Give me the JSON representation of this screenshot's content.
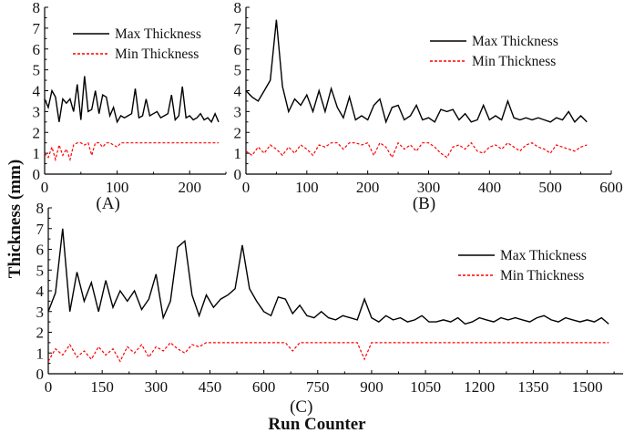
{
  "chart_data": {
    "type": "line",
    "ylabel": "Thickness (mm)",
    "xlabel": "Run Counter",
    "colors": {
      "max": "#000000",
      "min": "#ff0000"
    },
    "panels": [
      {
        "id": "A",
        "label": "(A)",
        "xlim": [
          0,
          250
        ],
        "ylim": [
          0,
          8
        ],
        "xticks": [
          "0",
          "100",
          "200"
        ],
        "xtick_values": [
          0,
          100,
          200
        ],
        "yticks": [
          "0",
          "1",
          "2",
          "3",
          "4",
          "5",
          "6",
          "7",
          "8"
        ],
        "legend_position": "top-right",
        "step": 5,
        "series": [
          {
            "name": "Max Thickness",
            "style": "solid",
            "values": [
              3.6,
              3.2,
              4.0,
              3.7,
              2.5,
              3.6,
              3.4,
              3.6,
              3.0,
              4.3,
              2.6,
              4.7,
              3.0,
              3.1,
              4.0,
              2.9,
              3.8,
              3.7,
              2.8,
              3.2,
              2.5,
              2.8,
              2.7,
              2.8,
              2.9,
              4.1,
              2.7,
              2.8,
              3.6,
              2.8,
              2.9,
              3.0,
              2.7,
              2.8,
              2.9,
              3.8,
              2.6,
              2.8,
              4.2,
              2.7,
              2.8,
              2.6,
              2.7,
              2.9,
              2.6,
              2.7,
              2.5,
              2.9,
              2.5
            ]
          },
          {
            "name": "Min Thickness",
            "style": "dashed",
            "values": [
              1.0,
              0.8,
              1.3,
              0.7,
              1.4,
              0.9,
              1.2,
              0.7,
              1.4,
              1.5,
              1.5,
              1.4,
              1.5,
              0.9,
              1.5,
              1.5,
              1.3,
              1.5,
              1.5,
              1.4,
              1.3,
              1.5,
              1.5,
              1.5,
              1.5,
              1.5,
              1.5,
              1.5,
              1.5,
              1.5,
              1.5,
              1.5,
              1.5,
              1.5,
              1.5,
              1.5,
              1.5,
              1.5,
              1.5,
              1.5,
              1.5,
              1.5,
              1.5,
              1.5,
              1.5,
              1.5,
              1.5,
              1.5,
              1.5
            ]
          }
        ]
      },
      {
        "id": "B",
        "label": "(B)",
        "xlim": [
          0,
          600
        ],
        "ylim": [
          0,
          8
        ],
        "xticks": [
          "0",
          "100",
          "200",
          "300",
          "400",
          "500",
          "600"
        ],
        "xtick_values": [
          0,
          100,
          200,
          300,
          400,
          500,
          600
        ],
        "yticks": [
          "0",
          "1",
          "2",
          "3",
          "4",
          "5",
          "6",
          "7",
          "8"
        ],
        "legend_position": "top-right",
        "step": 10,
        "series": [
          {
            "name": "Max Thickness",
            "style": "solid",
            "values": [
              4.0,
              3.7,
              3.5,
              4.0,
              4.5,
              7.4,
              4.2,
              3.0,
              3.6,
              3.3,
              3.8,
              3.0,
              4.0,
              3.0,
              4.1,
              3.2,
              2.7,
              3.7,
              2.6,
              2.8,
              2.6,
              3.3,
              3.6,
              2.5,
              3.2,
              3.3,
              2.6,
              2.8,
              3.3,
              2.6,
              2.7,
              2.5,
              3.1,
              3.0,
              3.1,
              2.6,
              2.9,
              2.5,
              2.6,
              3.3,
              2.6,
              2.8,
              2.6,
              3.5,
              2.7,
              2.6,
              2.7,
              2.6,
              2.7,
              2.6,
              2.5,
              2.7,
              2.6,
              3.0,
              2.5,
              2.8,
              2.5
            ]
          },
          {
            "name": "Min Thickness",
            "style": "dashed",
            "values": [
              1.1,
              0.9,
              1.3,
              1.0,
              1.4,
              1.2,
              0.9,
              1.3,
              1.0,
              1.4,
              1.2,
              0.9,
              1.4,
              1.3,
              1.5,
              1.5,
              1.2,
              1.5,
              1.5,
              1.4,
              1.5,
              0.9,
              1.5,
              1.3,
              0.8,
              1.5,
              1.2,
              1.4,
              1.1,
              1.5,
              1.5,
              1.3,
              1.0,
              0.8,
              1.3,
              1.4,
              1.2,
              1.5,
              1.1,
              1.0,
              1.3,
              1.4,
              1.2,
              1.5,
              1.3,
              1.1,
              1.4,
              1.5,
              1.3,
              1.2,
              1.0,
              1.4,
              1.3,
              1.2,
              1.1,
              1.3,
              1.4
            ]
          }
        ]
      },
      {
        "id": "C",
        "label": "(C)",
        "xlim": [
          0,
          1600
        ],
        "ylim": [
          0,
          8
        ],
        "xticks": [
          "0",
          "150",
          "300",
          "450",
          "600",
          "750",
          "900",
          "1050",
          "1200",
          "1350",
          "1500"
        ],
        "xtick_values": [
          0,
          150,
          300,
          450,
          600,
          750,
          900,
          1050,
          1200,
          1350,
          1500
        ],
        "yticks": [
          "0",
          "1",
          "2",
          "3",
          "4",
          "5",
          "6",
          "7",
          "8"
        ],
        "legend_position": "top-right",
        "step": 20,
        "series": [
          {
            "name": "Max Thickness",
            "style": "solid",
            "values": [
              3.0,
              3.9,
              7.0,
              3.0,
              4.9,
              3.5,
              4.4,
              3.0,
              4.5,
              3.2,
              4.0,
              3.5,
              4.0,
              3.1,
              3.6,
              4.8,
              2.7,
              3.5,
              6.1,
              6.4,
              3.8,
              2.8,
              3.8,
              3.2,
              3.6,
              3.8,
              4.1,
              6.2,
              4.1,
              3.5,
              3.0,
              2.8,
              3.7,
              3.6,
              2.9,
              3.3,
              2.8,
              2.7,
              3.0,
              2.7,
              2.6,
              2.8,
              2.7,
              2.6,
              3.6,
              2.7,
              2.5,
              2.8,
              2.6,
              2.7,
              2.5,
              2.6,
              2.8,
              2.5,
              2.5,
              2.6,
              2.5,
              2.7,
              2.4,
              2.5,
              2.7,
              2.6,
              2.5,
              2.7,
              2.6,
              2.7,
              2.6,
              2.5,
              2.7,
              2.8,
              2.6,
              2.5,
              2.7,
              2.6,
              2.5,
              2.6,
              2.5,
              2.7,
              2.4
            ]
          },
          {
            "name": "Min Thickness",
            "style": "dashed",
            "values": [
              0.6,
              1.2,
              0.9,
              1.4,
              0.8,
              1.1,
              0.7,
              1.3,
              0.9,
              1.2,
              0.6,
              1.3,
              1.0,
              1.4,
              0.8,
              1.3,
              1.1,
              1.5,
              1.2,
              1.0,
              1.4,
              1.3,
              1.5,
              1.5,
              1.5,
              1.5,
              1.5,
              1.5,
              1.5,
              1.5,
              1.5,
              1.5,
              1.5,
              1.5,
              1.1,
              1.5,
              1.5,
              1.5,
              1.5,
              1.5,
              1.5,
              1.5,
              1.5,
              1.5,
              0.7,
              1.5,
              1.5,
              1.5,
              1.5,
              1.5,
              1.5,
              1.5,
              1.5,
              1.5,
              1.5,
              1.5,
              1.5,
              1.5,
              1.5,
              1.5,
              1.5,
              1.5,
              1.5,
              1.5,
              1.5,
              1.5,
              1.5,
              1.5,
              1.5,
              1.5,
              1.5,
              1.5,
              1.5,
              1.5,
              1.5,
              1.5,
              1.5,
              1.5,
              1.5
            ]
          }
        ]
      }
    ]
  }
}
